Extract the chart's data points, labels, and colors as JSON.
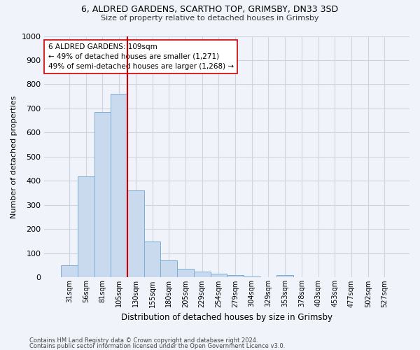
{
  "title1": "6, ALDRED GARDENS, SCARTHO TOP, GRIMSBY, DN33 3SD",
  "title2": "Size of property relative to detached houses in Grimsby",
  "xlabel": "Distribution of detached houses by size in Grimsby",
  "ylabel": "Number of detached properties",
  "bar_labels": [
    "31sqm",
    "56sqm",
    "81sqm",
    "105sqm",
    "130sqm",
    "155sqm",
    "180sqm",
    "205sqm",
    "229sqm",
    "254sqm",
    "279sqm",
    "304sqm",
    "329sqm",
    "353sqm",
    "378sqm",
    "403sqm",
    "453sqm",
    "477sqm",
    "502sqm",
    "527sqm"
  ],
  "bar_values": [
    50,
    420,
    685,
    760,
    360,
    150,
    70,
    35,
    25,
    15,
    10,
    5,
    0,
    10,
    0,
    0,
    0,
    0,
    0,
    0
  ],
  "bar_color": "#c9d9ee",
  "bar_edge_color": "#7badd4",
  "vline_x_index": 3,
  "vline_color": "#cc0000",
  "annotation_text": "6 ALDRED GARDENS: 109sqm\n← 49% of detached houses are smaller (1,271)\n49% of semi-detached houses are larger (1,268) →",
  "annotation_box_color": "#ffffff",
  "annotation_box_edge": "#cc0000",
  "grid_color": "#ccd5e0",
  "background_color": "#f0f4fa",
  "footer1": "Contains HM Land Registry data © Crown copyright and database right 2024.",
  "footer2": "Contains public sector information licensed under the Open Government Licence v3.0.",
  "ylim": [
    0,
    1000
  ],
  "yticks": [
    0,
    100,
    200,
    300,
    400,
    500,
    600,
    700,
    800,
    900,
    1000
  ]
}
